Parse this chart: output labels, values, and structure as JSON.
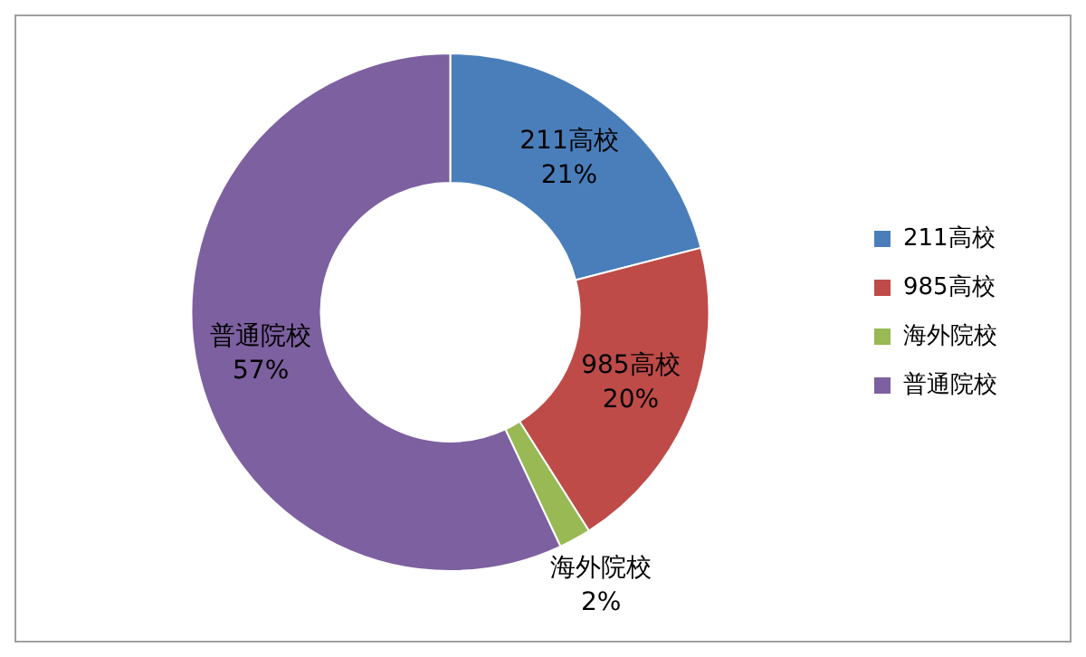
{
  "chart_data": {
    "type": "donut",
    "categories": [
      "211高校",
      "985高校",
      "海外院校",
      "普通院校"
    ],
    "values": [
      21,
      20,
      2,
      57
    ],
    "value_labels": [
      "21%",
      "20%",
      "2%",
      "57%"
    ],
    "colors": [
      "#4a7ebb",
      "#be4b48",
      "#98b954",
      "#7d60a0"
    ],
    "legend": "right"
  }
}
